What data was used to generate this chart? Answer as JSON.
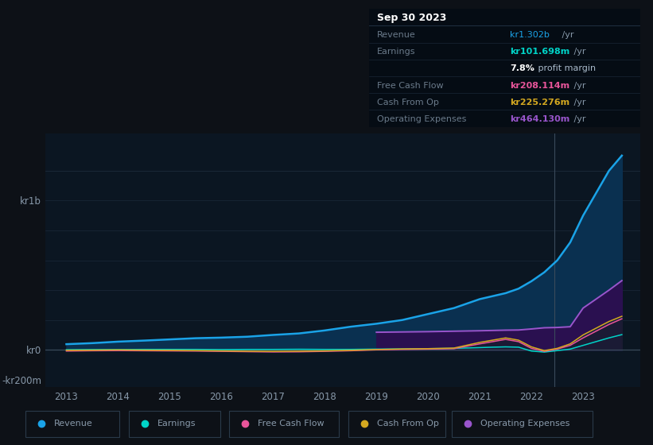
{
  "bg_color": "#0d1117",
  "chart_bg": "#0b1622",
  "grid_color": "#1c2a3a",
  "years": [
    2013,
    2013.5,
    2014,
    2014.5,
    2015,
    2015.5,
    2016,
    2016.5,
    2017,
    2017.5,
    2018,
    2018.5,
    2019,
    2019.5,
    2020,
    2020.5,
    2021,
    2021.25,
    2021.5,
    2021.75,
    2022,
    2022.25,
    2022.5,
    2022.75,
    2023,
    2023.5,
    2023.75
  ],
  "revenue": [
    38,
    45,
    55,
    62,
    70,
    78,
    82,
    88,
    100,
    110,
    130,
    155,
    175,
    200,
    240,
    280,
    340,
    360,
    380,
    410,
    460,
    520,
    600,
    720,
    900,
    1200,
    1302
  ],
  "earnings": [
    1,
    2,
    2,
    3,
    3,
    3,
    2,
    3,
    3,
    4,
    3,
    3,
    5,
    6,
    8,
    10,
    15,
    18,
    20,
    18,
    -8,
    -15,
    -5,
    5,
    30,
    80,
    102
  ],
  "free_cash_flow": [
    -8,
    -6,
    -5,
    -6,
    -7,
    -8,
    -10,
    -12,
    -14,
    -13,
    -10,
    -6,
    0,
    3,
    5,
    8,
    40,
    55,
    70,
    55,
    10,
    -10,
    5,
    30,
    80,
    170,
    208
  ],
  "cash_from_op": [
    -3,
    -2,
    0,
    -2,
    -3,
    -5,
    -7,
    -9,
    -10,
    -9,
    -7,
    -3,
    2,
    6,
    8,
    12,
    50,
    65,
    80,
    65,
    20,
    -5,
    10,
    40,
    100,
    190,
    225
  ],
  "op_expenses_x": [
    2019,
    2019.5,
    2020,
    2020.5,
    2021,
    2021.25,
    2021.5,
    2021.75,
    2022,
    2022.25,
    2022.5,
    2022.75,
    2023,
    2023.5,
    2023.75
  ],
  "op_expenses": [
    118,
    120,
    122,
    125,
    128,
    130,
    132,
    133,
    140,
    148,
    150,
    155,
    280,
    400,
    464
  ],
  "revenue_color": "#1aa3e8",
  "earnings_color": "#00d4c8",
  "fcf_color": "#e8559a",
  "cfo_color": "#d4a820",
  "opex_color": "#9955cc",
  "revenue_fill": "#0a3050",
  "opex_fill": "#2a1050",
  "ylim_min": -250,
  "ylim_max": 1450,
  "xmin": 2012.6,
  "xmax": 2024.1,
  "divider_x": 2022.45,
  "legend_items": [
    "Revenue",
    "Earnings",
    "Free Cash Flow",
    "Cash From Op",
    "Operating Expenses"
  ],
  "legend_colors": [
    "#1aa3e8",
    "#00d4c8",
    "#e8559a",
    "#d4a820",
    "#9955cc"
  ],
  "table_rows": [
    {
      "label": "Sep 30 2023",
      "value": "",
      "suffix": "",
      "header": true
    },
    {
      "label": "Revenue",
      "value": "kr1.302b",
      "suffix": " /yr",
      "value_color": "#1aa3e8"
    },
    {
      "label": "Earnings",
      "value": "kr101.698m",
      "suffix": " /yr",
      "value_color": "#00d4c8"
    },
    {
      "label": "",
      "value": "7.8%",
      "suffix": " profit margin",
      "value_color": "#ffffff",
      "suffix_color": "#aabbcc"
    },
    {
      "label": "Free Cash Flow",
      "value": "kr208.114m",
      "suffix": " /yr",
      "value_color": "#e8559a"
    },
    {
      "label": "Cash From Op",
      "value": "kr225.276m",
      "suffix": " /yr",
      "value_color": "#d4a820"
    },
    {
      "label": "Operating Expenses",
      "value": "kr464.130m",
      "suffix": " /yr",
      "value_color": "#9955cc"
    }
  ]
}
